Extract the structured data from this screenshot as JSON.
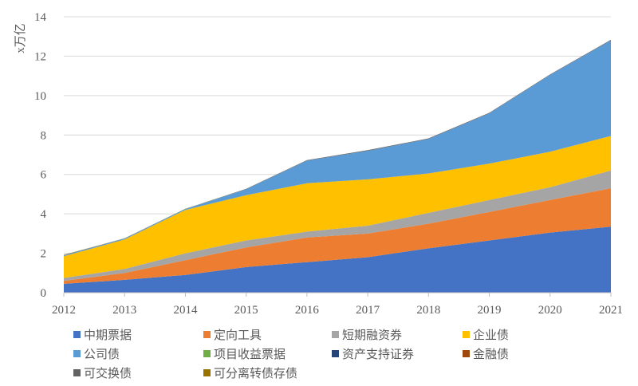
{
  "chart_data": {
    "type": "area",
    "stacked": true,
    "title": "",
    "xlabel": "",
    "ylabel": "x万亿",
    "x": [
      2012,
      2013,
      2014,
      2015,
      2016,
      2017,
      2018,
      2019,
      2020,
      2021
    ],
    "ylim": [
      0,
      14
    ],
    "yticks": [
      0,
      2,
      4,
      6,
      8,
      10,
      12,
      14
    ],
    "grid": true,
    "legend_position": "bottom",
    "series": [
      {
        "name": "中期票据",
        "color": "#4472C4",
        "values": [
          0.45,
          0.65,
          0.9,
          1.3,
          1.55,
          1.8,
          2.25,
          2.65,
          3.05,
          3.35
        ]
      },
      {
        "name": "定向工具",
        "color": "#ED7D31",
        "values": [
          0.15,
          0.35,
          0.75,
          1.0,
          1.25,
          1.2,
          1.25,
          1.45,
          1.65,
          1.95
        ]
      },
      {
        "name": "短期融资券",
        "color": "#A5A5A5",
        "values": [
          0.15,
          0.2,
          0.35,
          0.35,
          0.3,
          0.4,
          0.55,
          0.6,
          0.65,
          0.9
        ]
      },
      {
        "name": "企业债",
        "color": "#FFC000",
        "values": [
          1.1,
          1.5,
          2.2,
          2.3,
          2.45,
          2.35,
          2.0,
          1.85,
          1.8,
          1.75
        ]
      },
      {
        "name": "公司债",
        "color": "#5B9BD5",
        "values": [
          0.05,
          0.05,
          0.05,
          0.3,
          1.15,
          1.45,
          1.75,
          2.55,
          3.9,
          4.85
        ]
      },
      {
        "name": "项目收益票据",
        "color": "#70AD47",
        "values": [
          0,
          0,
          0,
          0,
          0,
          0,
          0,
          0,
          0,
          0
        ]
      },
      {
        "name": "资产支持证券",
        "color": "#264478",
        "values": [
          0,
          0,
          0,
          0,
          0,
          0,
          0,
          0,
          0,
          0
        ]
      },
      {
        "name": "金融债",
        "color": "#9E480E",
        "values": [
          0,
          0,
          0,
          0,
          0,
          0,
          0,
          0,
          0,
          0
        ]
      },
      {
        "name": "可交换债",
        "color": "#636363",
        "values": [
          0,
          0,
          0,
          0.02,
          0.03,
          0.03,
          0.03,
          0.03,
          0.03,
          0.03
        ]
      },
      {
        "name": "可分离转债存债",
        "color": "#997300",
        "values": [
          0.02,
          0.01,
          0.01,
          0,
          0,
          0,
          0,
          0,
          0,
          0
        ]
      }
    ]
  }
}
